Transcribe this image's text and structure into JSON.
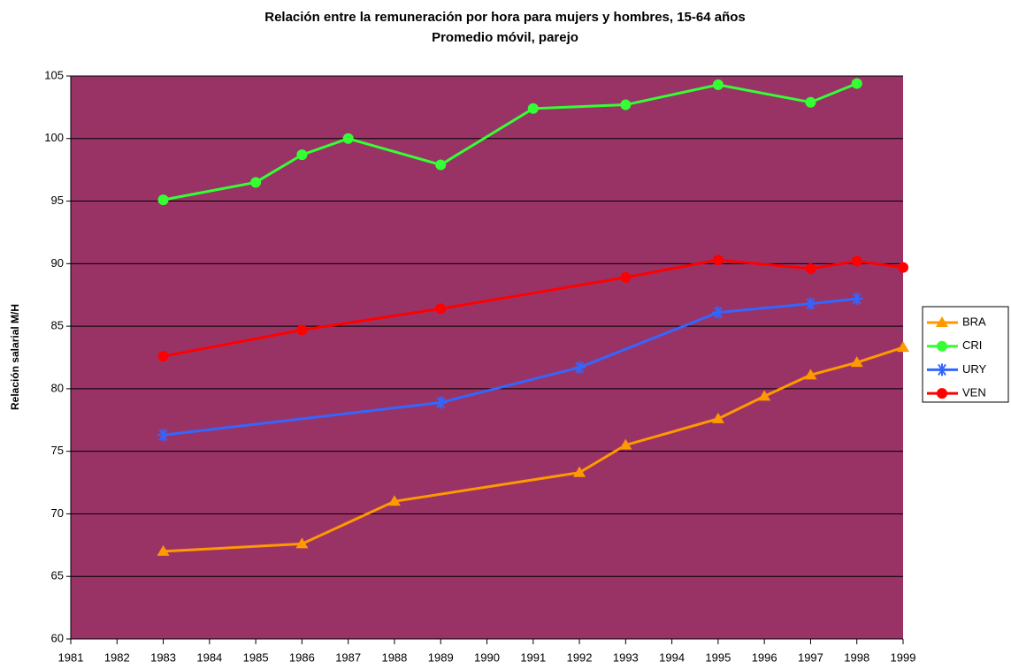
{
  "chart_data": {
    "type": "line",
    "title": "Relación entre la remuneración por hora para mujers y hombres, 15-64 años",
    "subtitle": "Promedio móvil, parejo",
    "y_label": "Relación salarial M/H",
    "xlim": [
      1981,
      1999
    ],
    "xticks": [
      1981,
      1982,
      1983,
      1984,
      1985,
      1986,
      1987,
      1988,
      1989,
      1990,
      1991,
      1992,
      1993,
      1994,
      1995,
      1996,
      1997,
      1998,
      1999
    ],
    "ylim": [
      60,
      105
    ],
    "yticks": [
      60,
      65,
      70,
      75,
      80,
      85,
      90,
      95,
      100,
      105
    ],
    "grid": true,
    "plot_background": "#993366",
    "legend": "right",
    "series": [
      {
        "name": "BRA",
        "color": "#ff9900",
        "marker": "triangle",
        "x": [
          1983,
          1986,
          1988,
          1992,
          1993,
          1995,
          1996,
          1997,
          1998,
          1999
        ],
        "values": [
          67.0,
          67.6,
          71.0,
          73.3,
          75.5,
          77.6,
          79.4,
          81.1,
          82.1,
          83.3
        ]
      },
      {
        "name": "CRI",
        "color": "#33ff33",
        "marker": "circle",
        "x": [
          1983,
          1985,
          1986,
          1987,
          1989,
          1991,
          1993,
          1995,
          1997,
          1998
        ],
        "values": [
          95.1,
          96.5,
          98.7,
          100.0,
          97.9,
          102.4,
          102.7,
          104.3,
          102.9,
          104.4
        ]
      },
      {
        "name": "URY",
        "color": "#3366ff",
        "marker": "star",
        "x": [
          1983,
          1989,
          1992,
          1995,
          1997,
          1998
        ],
        "values": [
          76.3,
          78.9,
          81.7,
          86.1,
          86.8,
          87.2
        ]
      },
      {
        "name": "VEN",
        "color": "#ff0000",
        "marker": "circle",
        "x": [
          1983,
          1986,
          1989,
          1993,
          1995,
          1997,
          1998,
          1999
        ],
        "values": [
          82.6,
          84.7,
          86.4,
          88.9,
          90.3,
          89.6,
          90.2,
          89.7
        ]
      }
    ]
  }
}
